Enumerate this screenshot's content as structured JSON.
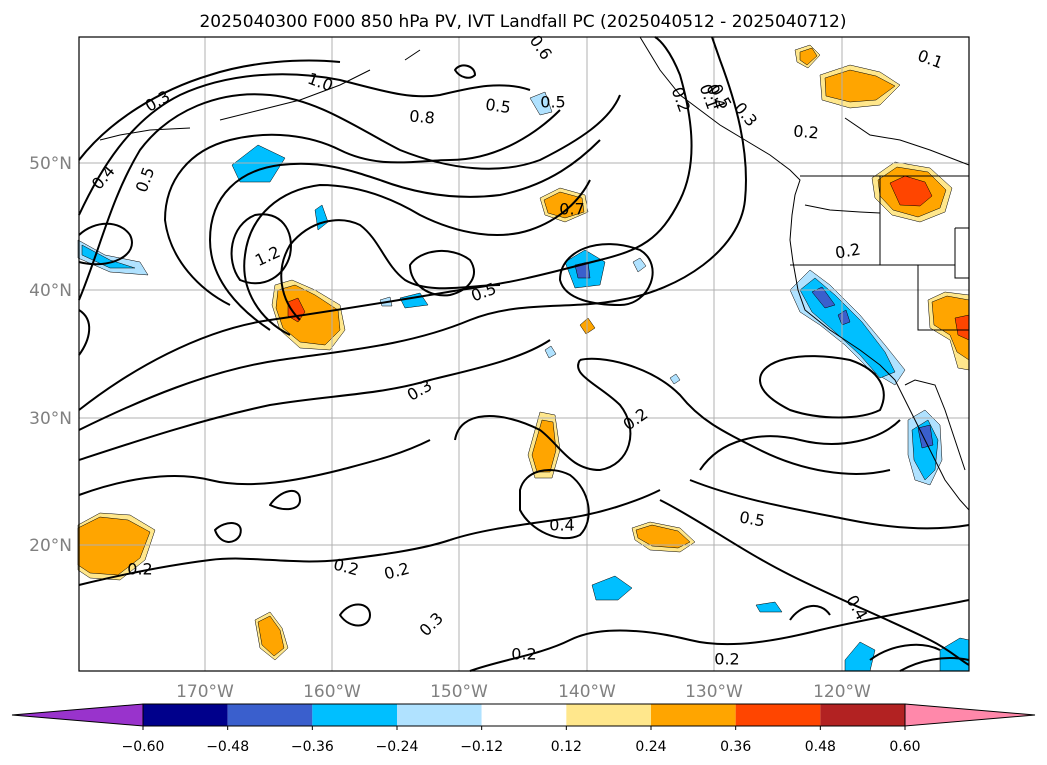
{
  "title": "2025040300 F000 850 hPa PV, IVT Landfall PC (2025040512 - 2025040712)",
  "lat_labels": [
    "50°N",
    "40°N",
    "30°N",
    "20°N"
  ],
  "lon_labels": [
    "170°W",
    "160°W",
    "150°W",
    "140°W",
    "130°W",
    "120°W"
  ],
  "contour_labels": [
    "0.6",
    "1.0",
    "0.3",
    "0.5",
    "0.8",
    "0.5",
    "0.4",
    "0.5",
    "1.2",
    "0.7",
    "0.5",
    "0.3",
    "0.2",
    "0.2",
    "0.4",
    "0.5",
    "0.2",
    "0.2",
    "0.2",
    "0.3",
    "0.2",
    "0.2",
    "0.4",
    "0.2",
    "0.3",
    "0.2",
    "0.1",
    "0.4",
    "0.5",
    "0.1"
  ],
  "colorbar": {
    "ticks": [
      "−0.60",
      "−0.48",
      "−0.36",
      "−0.24",
      "−0.12",
      "0.12",
      "0.24",
      "0.36",
      "0.48",
      "0.60"
    ],
    "colors": [
      "#9933cc",
      "#00008b",
      "#3a5fcd",
      "#00bfff",
      "#b0e2ff",
      "#ffffff",
      "#ffe78c",
      "#ffa500",
      "#ff4500",
      "#b22222",
      "#ff88aa"
    ]
  },
  "colors": {
    "neg_light": "#b0e2ff",
    "neg_mid": "#00bfff",
    "neg_strong": "#3a5fcd",
    "pos_light": "#ffe78c",
    "pos_mid": "#ffa500",
    "pos_strong": "#ff4500"
  }
}
